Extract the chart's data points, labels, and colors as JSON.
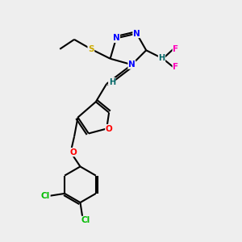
{
  "bg_color": "#eeeeee",
  "atom_colors": {
    "N": "#0000ff",
    "O": "#ff0000",
    "S": "#ccaa00",
    "F": "#ff00bb",
    "Cl": "#00bb00",
    "C": "#000000",
    "H": "#006666"
  },
  "bond_color": "#000000"
}
